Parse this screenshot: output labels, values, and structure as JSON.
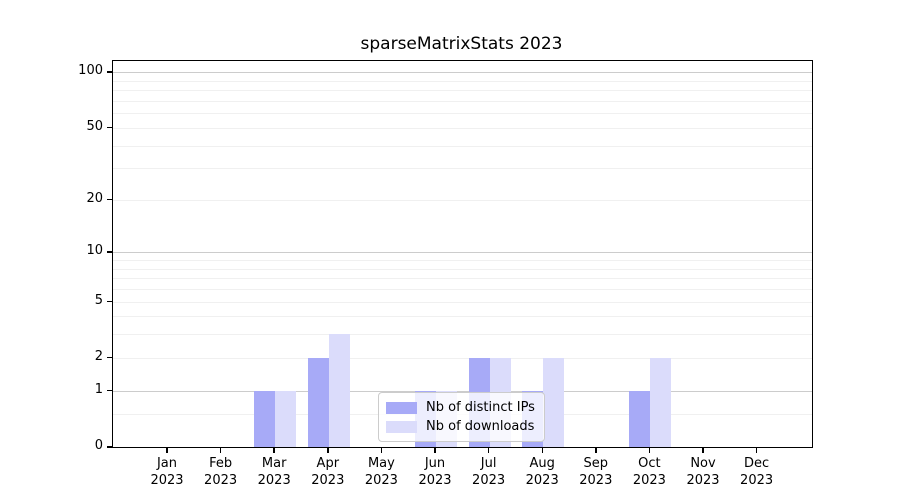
{
  "title": "sparseMatrixStats 2023",
  "chart_data": {
    "type": "bar",
    "title": "sparseMatrixStats 2023",
    "categories": [
      "Jan",
      "Feb",
      "Mar",
      "Apr",
      "May",
      "Jun",
      "Jul",
      "Aug",
      "Sep",
      "Oct",
      "Nov",
      "Dec"
    ],
    "x_year_line": "2023",
    "series": [
      {
        "name": "Nb of distinct IPs",
        "color": "#a7aaf7",
        "values": [
          0,
          0,
          1,
          2,
          0,
          1,
          2,
          1,
          0,
          1,
          0,
          0
        ]
      },
      {
        "name": "Nb of downloads",
        "color": "#dbdcfb",
        "values": [
          0,
          0,
          1,
          3,
          0,
          1,
          2,
          2,
          0,
          2,
          0,
          0
        ]
      }
    ],
    "y_ticks": [
      0,
      1,
      2,
      5,
      10,
      20,
      50,
      100
    ],
    "y_scale": "log1p",
    "ylim": [
      0,
      115
    ],
    "xlabel": "",
    "ylabel": "",
    "grid": "horizontal",
    "legend_position": "lower center",
    "colors": {
      "axis": "#000000",
      "grid_major": "#cccccc",
      "grid_minor": "#f0f0f0",
      "background": "#ffffff"
    }
  }
}
